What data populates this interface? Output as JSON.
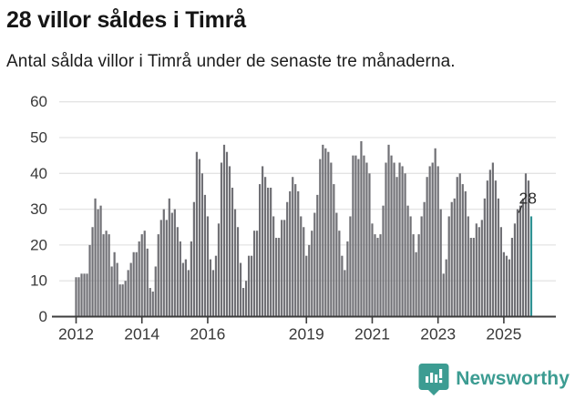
{
  "header": {
    "title": "28 villor såldes i Timrå",
    "subtitle": "Antal sålda villor i Timrå under de senaste tre månaderna."
  },
  "chart_data": {
    "type": "bar",
    "title": "28 villor såldes i Timrå",
    "subtitle": "Antal sålda villor i Timrå under de senaste tre månaderna.",
    "x_start_month": "2012-01",
    "x_end_month": "2025-11",
    "values": [
      11,
      11,
      12,
      12,
      12,
      20,
      25,
      33,
      30,
      31,
      23,
      24,
      23,
      14,
      18,
      15,
      9,
      9,
      10,
      13,
      15,
      18,
      18,
      21,
      23,
      24,
      19,
      8,
      7,
      14,
      23,
      27,
      30,
      27,
      33,
      29,
      30,
      25,
      21,
      15,
      16,
      13,
      21,
      32,
      46,
      44,
      40,
      34,
      28,
      16,
      13,
      17,
      26,
      43,
      48,
      46,
      42,
      36,
      30,
      25,
      15,
      8,
      10,
      17,
      17,
      24,
      24,
      37,
      42,
      39,
      36,
      36,
      28,
      22,
      22,
      27,
      27,
      32,
      35,
      39,
      37,
      35,
      28,
      25,
      17,
      20,
      24,
      29,
      34,
      44,
      48,
      47,
      46,
      43,
      37,
      29,
      24,
      17,
      13,
      21,
      28,
      45,
      45,
      44,
      49,
      45,
      43,
      40,
      26,
      23,
      22,
      23,
      31,
      43,
      48,
      45,
      43,
      39,
      43,
      42,
      40,
      31,
      28,
      23,
      18,
      23,
      28,
      32,
      39,
      42,
      43,
      47,
      42,
      30,
      12,
      16,
      28,
      32,
      33,
      39,
      40,
      37,
      35,
      28,
      22,
      22,
      26,
      25,
      27,
      33,
      38,
      41,
      43,
      38,
      33,
      25,
      18,
      17,
      16,
      22,
      26,
      30,
      31,
      33,
      40,
      38,
      28
    ],
    "highlight_index": 166,
    "highlight_label": "28",
    "ylim": [
      0,
      60
    ],
    "y_ticks": [
      "0",
      "10",
      "20",
      "30",
      "40",
      "50",
      "60"
    ],
    "x_ticks": [
      {
        "label": "2012",
        "month_index": 0
      },
      {
        "label": "2014",
        "month_index": 24
      },
      {
        "label": "2016",
        "month_index": 48
      },
      {
        "label": "2019",
        "month_index": 84
      },
      {
        "label": "2021",
        "month_index": 108
      },
      {
        "label": "2023",
        "month_index": 132
      },
      {
        "label": "2025",
        "month_index": 156
      }
    ],
    "grid": true,
    "legend": "none",
    "bar_color": "#707075",
    "highlight_color": "#2E9193",
    "grid_color": "#E4E4E4",
    "axis_color": "#3D3D3D",
    "tick_label_color": "#3A3A3A",
    "annotation_color": "#2B2B2B"
  },
  "footer": {
    "brand": "Newsworthy",
    "logo_icon": "newsworthy-chart-pin-icon",
    "brand_color": "#3C9C92"
  }
}
